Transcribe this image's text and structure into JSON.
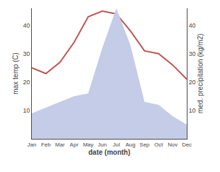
{
  "chart_data": {
    "type": "line",
    "xlabel": "date (month)",
    "ylabel": "max temp (C)",
    "y2label": "med. precipitation (kg/m2)",
    "categories": [
      "Jan",
      "Feb",
      "Mar",
      "Apr",
      "May",
      "Jun",
      "Jul",
      "Aug",
      "Sep",
      "Oct",
      "Nov",
      "Dec"
    ],
    "series": [
      {
        "type": "area",
        "axis": "y2",
        "color": "#c5cce8",
        "values": [
          9,
          11,
          13,
          15,
          16,
          32,
          46,
          33,
          13,
          12,
          8,
          5
        ]
      },
      {
        "type": "line",
        "color": "#c0504d",
        "values": [
          25,
          23,
          27,
          34,
          43,
          45,
          44,
          38,
          31,
          30,
          26,
          21
        ]
      }
    ],
    "ylim": [
      0,
      46
    ],
    "yticks": [
      10,
      20,
      30,
      40
    ],
    "y2lim": [
      0,
      46
    ],
    "y2ticks": [
      10,
      20,
      30,
      40
    ],
    "grid": false
  }
}
